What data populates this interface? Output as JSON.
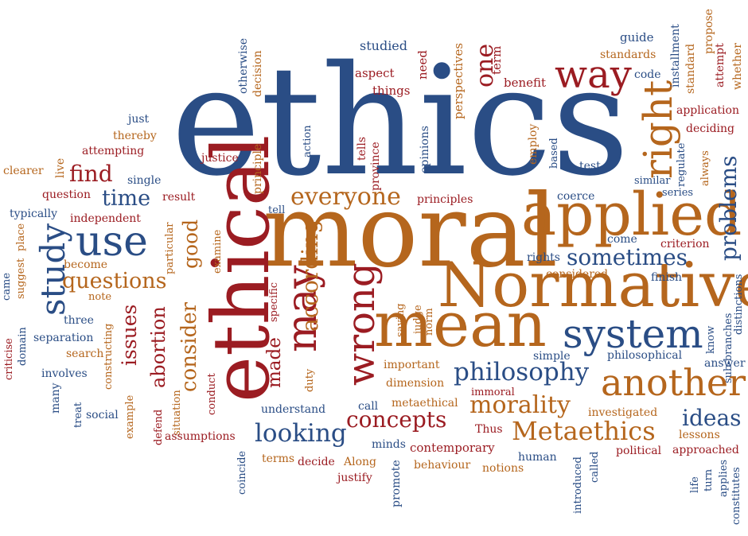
{
  "palette": {
    "blue": "#2a4d85",
    "orange": "#b5661d",
    "red": "#9b1c22"
  },
  "words": [
    {
      "text": "ethics",
      "c": "blue"
    },
    {
      "text": "moral",
      "c": "orange"
    },
    {
      "text": "ethical",
      "c": "red"
    },
    {
      "text": "Normative",
      "c": "orange"
    },
    {
      "text": "mean",
      "c": "orange"
    },
    {
      "text": "applied",
      "c": "orange"
    },
    {
      "text": "system",
      "c": "blue"
    },
    {
      "text": "another",
      "c": "orange"
    },
    {
      "text": "may",
      "c": "red"
    },
    {
      "text": "wrong",
      "c": "red"
    },
    {
      "text": "use",
      "c": "blue"
    },
    {
      "text": "right",
      "c": "orange"
    },
    {
      "text": "way",
      "c": "red"
    },
    {
      "text": "everyone",
      "c": "orange"
    },
    {
      "text": "philosophy",
      "c": "blue"
    },
    {
      "text": "Metaethics",
      "c": "orange"
    },
    {
      "text": "looking",
      "c": "blue"
    },
    {
      "text": "morality",
      "c": "orange"
    },
    {
      "text": "concepts",
      "c": "red"
    },
    {
      "text": "study",
      "c": "blue"
    },
    {
      "text": "questions",
      "c": "orange"
    },
    {
      "text": "problems",
      "c": "blue"
    },
    {
      "text": "sometimes",
      "c": "blue"
    },
    {
      "text": "ideas",
      "c": "blue"
    },
    {
      "text": "according",
      "c": "orange"
    },
    {
      "text": "consider",
      "c": "orange"
    },
    {
      "text": "find",
      "c": "red"
    },
    {
      "text": "time",
      "c": "blue"
    },
    {
      "text": "issues",
      "c": "red"
    },
    {
      "text": "abortion",
      "c": "red"
    },
    {
      "text": "good",
      "c": "orange"
    },
    {
      "text": "made",
      "c": "red"
    },
    {
      "text": "one",
      "c": "red"
    },
    {
      "text": "studied",
      "c": "blue"
    },
    {
      "text": "aspect",
      "c": "red"
    },
    {
      "text": "things",
      "c": "red"
    },
    {
      "text": "need",
      "c": "red"
    },
    {
      "text": "perspectives",
      "c": "orange"
    },
    {
      "text": "term",
      "c": "red"
    },
    {
      "text": "benefit",
      "c": "red"
    },
    {
      "text": "guide",
      "c": "blue"
    },
    {
      "text": "standards",
      "c": "orange"
    },
    {
      "text": "code",
      "c": "blue"
    },
    {
      "text": "installment",
      "c": "blue"
    },
    {
      "text": "standard",
      "c": "orange"
    },
    {
      "text": "propose",
      "c": "orange"
    },
    {
      "text": "attempt",
      "c": "red"
    },
    {
      "text": "whether",
      "c": "orange"
    },
    {
      "text": "application",
      "c": "red"
    },
    {
      "text": "deciding",
      "c": "red"
    },
    {
      "text": "regulate",
      "c": "blue"
    },
    {
      "text": "always",
      "c": "orange"
    },
    {
      "text": "series",
      "c": "blue"
    },
    {
      "text": "similar",
      "c": "blue"
    },
    {
      "text": "test",
      "c": "blue"
    },
    {
      "text": "coerce",
      "c": "blue"
    },
    {
      "text": "come",
      "c": "blue"
    },
    {
      "text": "criterion",
      "c": "red"
    },
    {
      "text": "rights",
      "c": "blue"
    },
    {
      "text": "considered",
      "c": "orange"
    },
    {
      "text": "finish",
      "c": "blue"
    },
    {
      "text": "know",
      "c": "blue"
    },
    {
      "text": "sub-branches",
      "c": "blue"
    },
    {
      "text": "distinctions",
      "c": "blue"
    },
    {
      "text": "philosophical",
      "c": "blue"
    },
    {
      "text": "answer",
      "c": "blue"
    },
    {
      "text": "simple",
      "c": "blue"
    },
    {
      "text": "investigated",
      "c": "orange"
    },
    {
      "text": "lessons",
      "c": "orange"
    },
    {
      "text": "approached",
      "c": "red"
    },
    {
      "text": "political",
      "c": "red"
    },
    {
      "text": "life",
      "c": "blue"
    },
    {
      "text": "turn",
      "c": "blue"
    },
    {
      "text": "applies",
      "c": "blue"
    },
    {
      "text": "constitutes",
      "c": "blue"
    },
    {
      "text": "employ",
      "c": "orange"
    },
    {
      "text": "based",
      "c": "blue"
    },
    {
      "text": "tells",
      "c": "red"
    },
    {
      "text": "province",
      "c": "red"
    },
    {
      "text": "opinions",
      "c": "blue"
    },
    {
      "text": "principles",
      "c": "red"
    },
    {
      "text": "action",
      "c": "blue"
    },
    {
      "text": "principle",
      "c": "orange"
    },
    {
      "text": "decision",
      "c": "orange"
    },
    {
      "text": "otherwise",
      "c": "blue"
    },
    {
      "text": "justice",
      "c": "red"
    },
    {
      "text": "tell",
      "c": "blue"
    },
    {
      "text": "just",
      "c": "blue"
    },
    {
      "text": "thereby",
      "c": "orange"
    },
    {
      "text": "attempting",
      "c": "red"
    },
    {
      "text": "live",
      "c": "orange"
    },
    {
      "text": "clearer",
      "c": "orange"
    },
    {
      "text": "single",
      "c": "blue"
    },
    {
      "text": "question",
      "c": "red"
    },
    {
      "text": "result",
      "c": "red"
    },
    {
      "text": "typically",
      "c": "blue"
    },
    {
      "text": "independent",
      "c": "red"
    },
    {
      "text": "place",
      "c": "orange"
    },
    {
      "text": "suggest",
      "c": "orange"
    },
    {
      "text": "came",
      "c": "blue"
    },
    {
      "text": "become",
      "c": "orange"
    },
    {
      "text": "particular",
      "c": "orange"
    },
    {
      "text": "examine",
      "c": "orange"
    },
    {
      "text": "note",
      "c": "orange"
    },
    {
      "text": "three",
      "c": "blue"
    },
    {
      "text": "separation",
      "c": "blue"
    },
    {
      "text": "search",
      "c": "orange"
    },
    {
      "text": "domain",
      "c": "blue"
    },
    {
      "text": "criticise",
      "c": "red"
    },
    {
      "text": "involves",
      "c": "blue"
    },
    {
      "text": "many",
      "c": "blue"
    },
    {
      "text": "constructing",
      "c": "orange"
    },
    {
      "text": "treat",
      "c": "blue"
    },
    {
      "text": "social",
      "c": "blue"
    },
    {
      "text": "example",
      "c": "orange"
    },
    {
      "text": "defend",
      "c": "red"
    },
    {
      "text": "situation",
      "c": "orange"
    },
    {
      "text": "conduct",
      "c": "red"
    },
    {
      "text": "assumptions",
      "c": "red"
    },
    {
      "text": "coincide",
      "c": "blue"
    },
    {
      "text": "specific",
      "c": "red"
    },
    {
      "text": "duty",
      "c": "orange"
    },
    {
      "text": "understand",
      "c": "blue"
    },
    {
      "text": "terms",
      "c": "orange"
    },
    {
      "text": "decide",
      "c": "red"
    },
    {
      "text": "Along",
      "c": "orange"
    },
    {
      "text": "justify",
      "c": "red"
    },
    {
      "text": "promote",
      "c": "blue"
    },
    {
      "text": "minds",
      "c": "blue"
    },
    {
      "text": "call",
      "c": "blue"
    },
    {
      "text": "metaethical",
      "c": "orange"
    },
    {
      "text": "dimension",
      "c": "orange"
    },
    {
      "text": "important",
      "c": "orange"
    },
    {
      "text": "saying",
      "c": "orange"
    },
    {
      "text": "judge",
      "c": "orange"
    },
    {
      "text": "norm",
      "c": "orange"
    },
    {
      "text": "contemporary",
      "c": "red"
    },
    {
      "text": "behaviour",
      "c": "orange"
    },
    {
      "text": "notions",
      "c": "orange"
    },
    {
      "text": "immoral",
      "c": "red"
    },
    {
      "text": "Thus",
      "c": "red"
    },
    {
      "text": "human",
      "c": "blue"
    },
    {
      "text": "introduced",
      "c": "blue"
    },
    {
      "text": "called",
      "c": "blue"
    }
  ]
}
